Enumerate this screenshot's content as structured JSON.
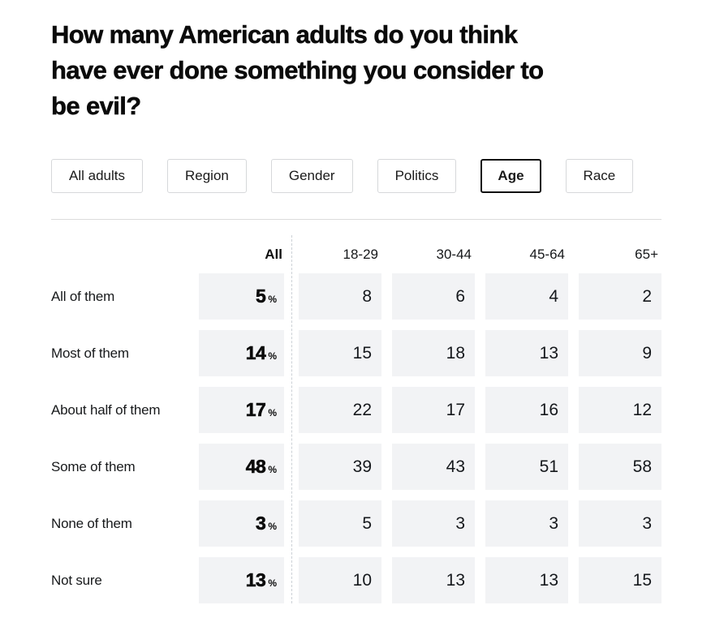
{
  "header": {
    "title": "How many American adults do you think have ever done something you consider to be evil?",
    "title_lines": [
      "How many American adults do you think",
      "have ever done something you consider to",
      "be evil?"
    ]
  },
  "filters": {
    "items": [
      {
        "label": "All adults",
        "selected": false
      },
      {
        "label": "Region",
        "selected": false
      },
      {
        "label": "Gender",
        "selected": false
      },
      {
        "label": "Politics",
        "selected": false
      },
      {
        "label": "Age",
        "selected": true
      },
      {
        "label": "Race",
        "selected": false
      }
    ]
  },
  "table": {
    "percent_suffix": "%"
  },
  "chart_data": {
    "type": "table",
    "title": "How many American adults do you think have ever done something you consider to be evil?",
    "selected_breakdown": "Age",
    "breakdown_options": [
      "All adults",
      "Region",
      "Gender",
      "Politics",
      "Age",
      "Race"
    ],
    "categories": [
      "All of them",
      "Most of them",
      "About half of them",
      "Some of them",
      "None of them",
      "Not sure"
    ],
    "series": [
      {
        "name": "All",
        "unit": "%",
        "values": [
          5,
          14,
          17,
          48,
          3,
          13
        ]
      },
      {
        "name": "18-29",
        "values": [
          8,
          15,
          22,
          39,
          5,
          10
        ]
      },
      {
        "name": "30-44",
        "values": [
          6,
          18,
          17,
          43,
          3,
          13
        ]
      },
      {
        "name": "45-64",
        "values": [
          4,
          13,
          16,
          51,
          3,
          13
        ]
      },
      {
        "name": "65+",
        "values": [
          2,
          9,
          12,
          58,
          3,
          15
        ]
      }
    ]
  },
  "colors": {
    "cell_background": "#f2f3f5",
    "selected_tab_border": "#111111",
    "tab_border": "#d6d8da",
    "divider": "#dcdcdc",
    "text": "#111111"
  }
}
